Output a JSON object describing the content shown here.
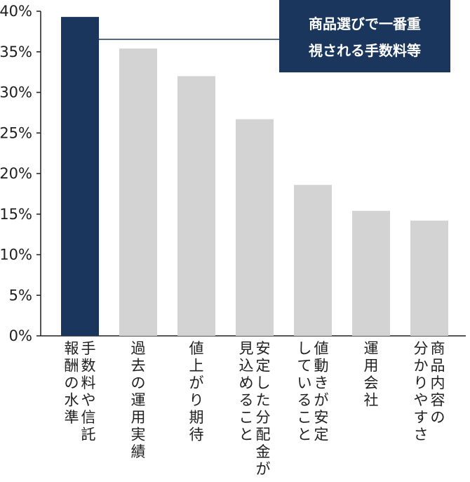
{
  "chart_data": {
    "type": "bar",
    "ylim": [
      0,
      40
    ],
    "yticks": [
      "0%",
      "5%",
      "10%",
      "15%",
      "20%",
      "25%",
      "30%",
      "35%",
      "40%"
    ],
    "ytick_values": [
      0,
      5,
      10,
      15,
      20,
      25,
      30,
      35,
      40
    ],
    "grid": false,
    "categories": [
      [
        "手数料や信託",
        "報酬の水準"
      ],
      [
        "過去の運用実績"
      ],
      [
        "値上がり期待"
      ],
      [
        "安定した分配金が",
        "見込めること"
      ],
      [
        "値動きが安定",
        "していること"
      ],
      [
        "運用会社"
      ],
      [
        "商品内容の",
        "分かりやすさ"
      ]
    ],
    "values": [
      39.3,
      35.4,
      32.0,
      26.7,
      18.6,
      15.4,
      14.2
    ],
    "highlight_index": 0,
    "colors": {
      "highlight": "#1a365d",
      "normal": "#d3d3d3",
      "axis": "#1f1f1f",
      "callout_bg": "#1a365d",
      "callout_text": "#ffffff"
    },
    "annotation": {
      "lines": [
        "商品選びで一番重",
        "視される手数料等"
      ],
      "points_to_index": 0
    }
  }
}
